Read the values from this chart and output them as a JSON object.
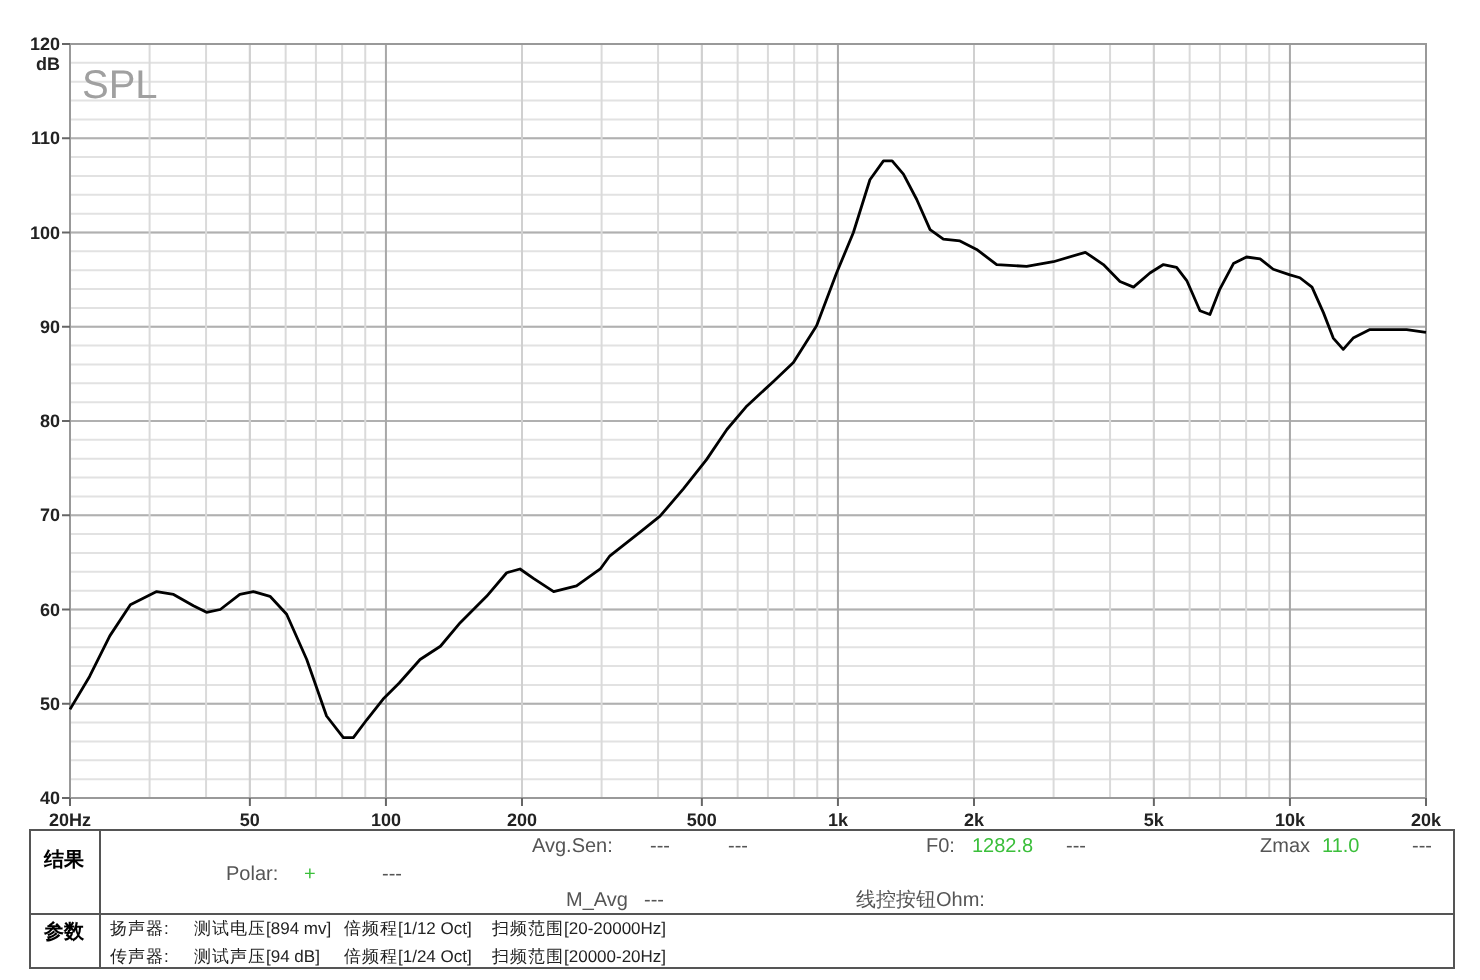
{
  "chart_data": {
    "type": "line",
    "title": "SPL",
    "ylabel": "dB",
    "log": "x",
    "grid": true,
    "line_style": "solid",
    "marker": "none",
    "xlim": [
      20,
      20000
    ],
    "xticks": [
      {
        "value": 20,
        "label": "20Hz"
      },
      50,
      100,
      200,
      500,
      {
        "value": 1000,
        "label": "1k"
      },
      {
        "value": 2000,
        "label": "2k"
      },
      {
        "value": 5000,
        "label": "5k"
      },
      {
        "value": 10000,
        "label": "10k"
      },
      {
        "value": 20000,
        "label": "20k"
      }
    ],
    "ylim": [
      40,
      120
    ],
    "yticks": [
      40,
      50,
      60,
      70,
      80,
      90,
      100,
      110,
      120
    ],
    "series": [
      {
        "color": "#000000",
        "x": [
          20,
          22.1,
          24.5,
          27.2,
          31.1,
          33.9,
          37.5,
          40.1,
          43.0,
          47.5,
          50.9,
          55.4,
          60.3,
          66.8,
          73.9,
          80.5,
          84.7,
          90.7,
          98.6,
          107,
          119,
          132,
          146,
          167,
          185,
          198,
          212,
          235,
          264,
          298,
          313,
          365,
          404,
          455,
          512,
          568,
          629,
          720,
          797,
          897,
          993,
          1082,
          1177,
          1261,
          1318,
          1396,
          1494,
          1599,
          1711,
          1862,
          2027,
          2245,
          2615,
          2997,
          3527,
          3866,
          4207,
          4507,
          4900,
          5250,
          5614,
          5912,
          6324,
          6653,
          6998,
          7499,
          8017,
          8590,
          9185,
          10000,
          10520,
          11190,
          11860,
          12470,
          13120,
          13800,
          15030,
          16630,
          18120,
          20000
        ],
        "values": [
          49.4,
          52.9,
          57.2,
          60.5,
          61.9,
          61.6,
          60.4,
          59.7,
          60.0,
          61.6,
          61.9,
          61.4,
          59.5,
          54.7,
          48.7,
          46.4,
          46.4,
          48.3,
          50.5,
          52.2,
          54.7,
          56.1,
          58.6,
          61.4,
          63.9,
          64.3,
          63.3,
          61.9,
          62.5,
          64.3,
          65.7,
          68.2,
          69.9,
          72.8,
          75.9,
          79.1,
          81.6,
          84.2,
          86.2,
          90.1,
          95.7,
          100.0,
          105.6,
          107.6,
          107.6,
          106.2,
          103.5,
          100.3,
          99.3,
          99.1,
          98.2,
          96.6,
          96.4,
          96.9,
          97.9,
          96.6,
          94.8,
          94.2,
          95.7,
          96.6,
          96.3,
          94.9,
          91.7,
          91.3,
          94.0,
          96.7,
          97.4,
          97.2,
          96.1,
          95.5,
          95.2,
          94.2,
          91.5,
          88.8,
          87.6,
          88.8,
          89.7,
          89.7,
          89.7,
          89.4
        ]
      }
    ],
    "annotations": [
      "结果",
      "参数",
      "Avg.Sen:",
      "---",
      "---",
      "F0:",
      "1282.8",
      "---",
      "Zmax",
      "11.0",
      "---",
      "Polar:",
      "+",
      "---",
      "M_Avg",
      "---",
      "线控按钮Ohm:",
      "扬声器:",
      "测试电压[894 mv]",
      "倍频程[1/12 Oct]",
      "扫频范围[20-20000Hz]",
      "传声器:",
      "测试声压[94 dB]",
      "倍频程[1/24 Oct]",
      "扫频范围[20000-20Hz]"
    ]
  }
}
